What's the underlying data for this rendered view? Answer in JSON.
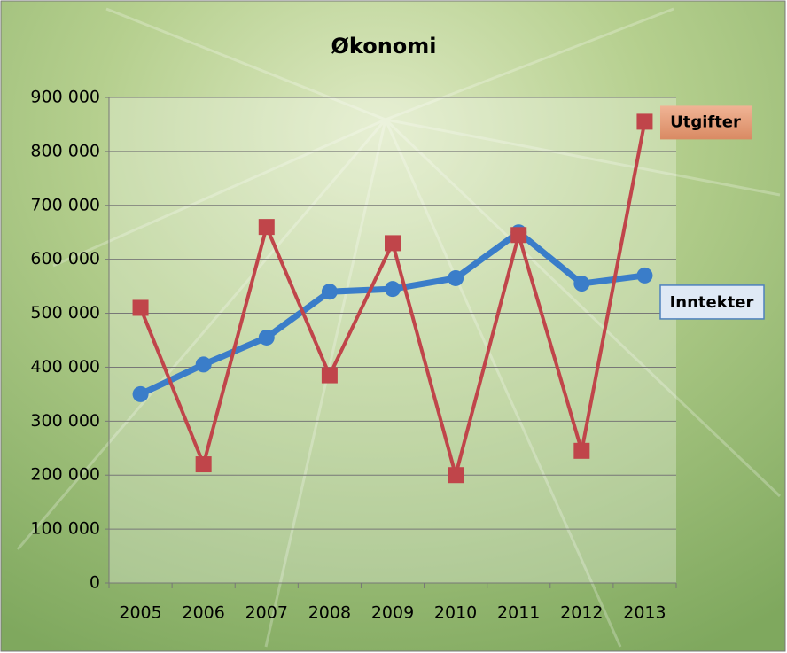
{
  "chart_data": {
    "type": "line",
    "title": "Økonomi",
    "categories": [
      "2005",
      "2006",
      "2007",
      "2008",
      "2009",
      "2010",
      "2011",
      "2012",
      "2013"
    ],
    "series": [
      {
        "name": "Inntekter",
        "color": "#3a7dc9",
        "values": [
          350000,
          405000,
          455000,
          540000,
          545000,
          565000,
          650000,
          555000,
          570000
        ]
      },
      {
        "name": "Utgifter",
        "color": "#c0454a",
        "values": [
          510000,
          220000,
          660000,
          385000,
          630000,
          200000,
          645000,
          245000,
          855000
        ]
      }
    ],
    "ylim": [
      0,
      900000
    ],
    "yticks": [
      0,
      {
        "value": 100000,
        "label": "100 000"
      },
      {
        "value": 200000,
        "label": "200 000"
      },
      {
        "value": 300000,
        "label": "300 000"
      },
      {
        "value": 400000,
        "label": "400 000"
      },
      {
        "value": 500000,
        "label": "500 000"
      },
      {
        "value": 600000,
        "label": "600 000"
      },
      {
        "value": 700000,
        "label": "700 000"
      },
      {
        "value": 800000,
        "label": "800 000"
      },
      {
        "value": 900000,
        "label": "900 000"
      }
    ],
    "grid": true
  }
}
